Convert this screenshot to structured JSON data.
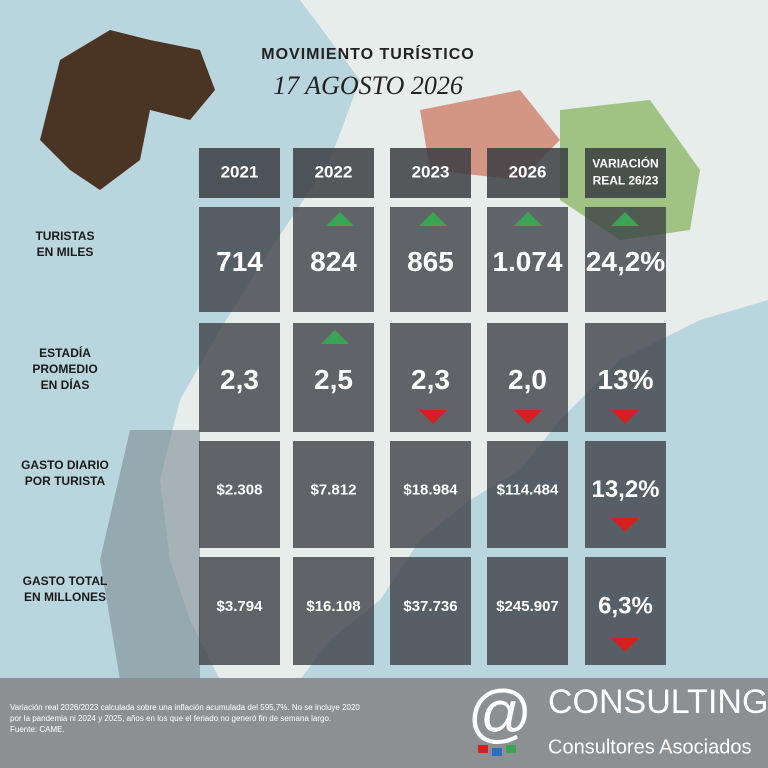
{
  "header": {
    "title": "MOVIMIENTO TURÍSTICO",
    "date": "17 AGOSTO 2026"
  },
  "table": {
    "columns": [
      [
        "2021"
      ],
      [
        "2022"
      ],
      [
        "2023"
      ],
      [
        "2026"
      ],
      [
        "VARIACIÓN",
        "REAL 26/23"
      ]
    ],
    "row_labels": [
      [
        "TURISTAS",
        "EN MILES"
      ],
      [
        "ESTADÍA",
        "PROMEDIO",
        "EN DÍAS"
      ],
      [
        "GASTO DIARIO",
        "POR TURISTA"
      ],
      [
        "GASTO TOTAL",
        "EN MILLONES"
      ]
    ],
    "rows": [
      [
        "714",
        "824",
        "865",
        "1.074",
        "24,2%"
      ],
      [
        "2,3",
        "2,5",
        "2,3",
        "2,0",
        "13%"
      ],
      [
        "$2.308",
        "$7.812",
        "$18.984",
        "$114.484",
        "13,2%"
      ],
      [
        "$3.794",
        "$16.108",
        "$37.736",
        "$245.907",
        "6,3%"
      ]
    ]
  },
  "footnote": [
    "Variación real 2026/2023 calculada sobre una inflación acumulada del 595,7%. No se incluye 2020",
    "por la pandemia ni 2024 y 2025, años en los que el feriado no generó fin de semana largo.",
    "Fuente: CAME."
  ],
  "logo": {
    "name": "CONSULTING",
    "subtitle": "Consultores Asociados"
  }
}
